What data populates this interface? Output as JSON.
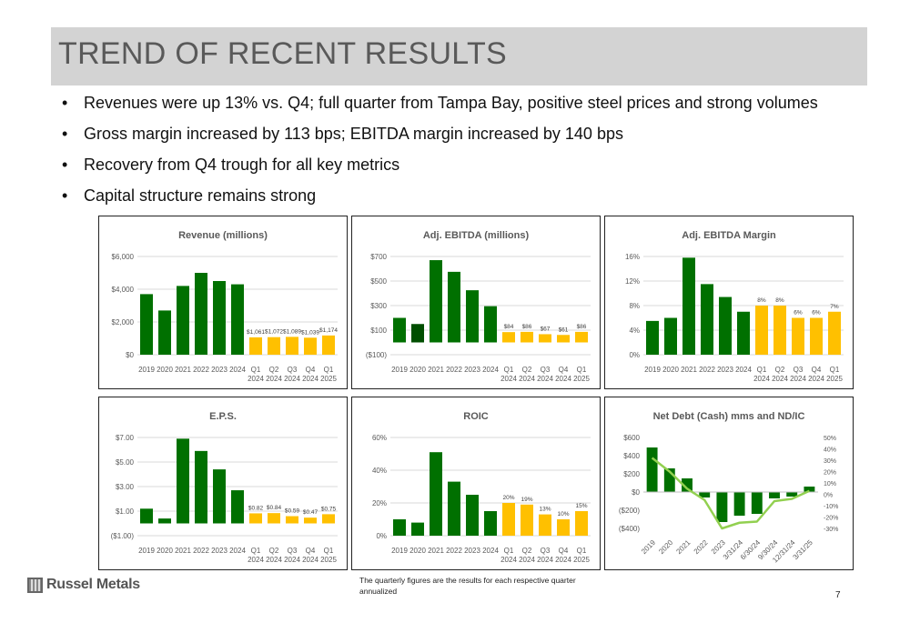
{
  "page_title": "TREND OF RECENT RESULTS",
  "bullets": [
    "Revenues were up 13% vs. Q4; full quarter from Tampa Bay, positive steel prices and strong volumes",
    "Gross margin increased by 113 bps; EBITDA margin increased by 140 bps",
    "Recovery from Q4 trough for all key metrics",
    "Capital structure remains strong"
  ],
  "bullet_char": "•",
  "footnote": {
    "line1": "The quarterly figures are the results for each respective quarter",
    "line2": "annualized"
  },
  "logo_text": "Russel Metals",
  "logo_icon": "russel-metals-logo-mark",
  "page_number": "7",
  "colors": {
    "annual": "#007000",
    "annual_dark": "#004e00",
    "quarterly": "#ffc000",
    "line": "#92d050",
    "title_bar": "#d3d3d3"
  },
  "chart_data": [
    {
      "id": "revenue",
      "type": "bar",
      "title": "Revenue (millions)",
      "categories": [
        [
          "2019"
        ],
        [
          "2020"
        ],
        [
          "2021"
        ],
        [
          "2022"
        ],
        [
          "2023"
        ],
        [
          "2024"
        ],
        [
          "Q1",
          "2024"
        ],
        [
          "Q2",
          "2024"
        ],
        [
          "Q3",
          "2024"
        ],
        [
          "Q4",
          "2024"
        ],
        [
          "Q1",
          "2025"
        ]
      ],
      "values": [
        3700,
        2700,
        4200,
        5000,
        4500,
        4300,
        1061,
        1072,
        1089,
        1039,
        1174
      ],
      "bar_colors": [
        "annual",
        "annual",
        "annual",
        "annual",
        "annual",
        "annual",
        "quarterly",
        "quarterly",
        "quarterly",
        "quarterly",
        "quarterly"
      ],
      "data_labels": [
        "",
        "",
        "",
        "",
        "",
        "",
        "$1,061",
        "$1,072",
        "$1,089",
        "$1,039",
        "$1,174"
      ],
      "yticks": [
        0,
        2000,
        4000,
        6000
      ],
      "ytick_labels": [
        "$0",
        "$2,000",
        "$4,000",
        "$6,000"
      ],
      "ylim": [
        0,
        6000
      ],
      "grid": true
    },
    {
      "id": "ebitda",
      "type": "bar",
      "title": "Adj. EBITDA (millions)",
      "categories": [
        [
          "2019"
        ],
        [
          "2020"
        ],
        [
          "2021"
        ],
        [
          "2022"
        ],
        [
          "2023"
        ],
        [
          "2024"
        ],
        [
          "Q1",
          "2024"
        ],
        [
          "Q2",
          "2024"
        ],
        [
          "Q3",
          "2024"
        ],
        [
          "Q4",
          "2024"
        ],
        [
          "Q1",
          "2025"
        ]
      ],
      "values": [
        200,
        150,
        670,
        575,
        425,
        295,
        84,
        86,
        67,
        61,
        86
      ],
      "bar_colors": [
        "annual",
        "annual_dark",
        "annual",
        "annual",
        "annual",
        "annual",
        "quarterly",
        "quarterly",
        "quarterly",
        "quarterly",
        "quarterly"
      ],
      "data_labels": [
        "",
        "",
        "",
        "",
        "",
        "",
        "$84",
        "$86",
        "$67",
        "$61",
        "$86"
      ],
      "yticks": [
        -100,
        100,
        300,
        500,
        700
      ],
      "ytick_labels": [
        "($100)",
        "$100",
        "$300",
        "$500",
        "$700"
      ],
      "ylim": [
        -100,
        700
      ],
      "grid": true
    },
    {
      "id": "margin",
      "type": "bar",
      "title": "Adj. EBITDA Margin",
      "categories": [
        [
          "2019"
        ],
        [
          "2020"
        ],
        [
          "2021"
        ],
        [
          "2022"
        ],
        [
          "2023"
        ],
        [
          "2024"
        ],
        [
          "Q1",
          "2024"
        ],
        [
          "Q2",
          "2024"
        ],
        [
          "Q3",
          "2024"
        ],
        [
          "Q4",
          "2024"
        ],
        [
          "Q1",
          "2025"
        ]
      ],
      "values": [
        5.5,
        6,
        15.8,
        11.5,
        9.4,
        7,
        8,
        8,
        6,
        6,
        7
      ],
      "bar_colors": [
        "annual",
        "annual",
        "annual",
        "annual",
        "annual",
        "annual",
        "quarterly",
        "quarterly",
        "quarterly",
        "quarterly",
        "quarterly"
      ],
      "data_labels": [
        "",
        "",
        "",
        "",
        "",
        "",
        "8%",
        "8%",
        "6%",
        "6%",
        "7%"
      ],
      "yticks": [
        0,
        4,
        8,
        12,
        16
      ],
      "ytick_labels": [
        "0%",
        "4%",
        "8%",
        "12%",
        "16%"
      ],
      "ylim": [
        0,
        16
      ],
      "grid": true
    },
    {
      "id": "eps",
      "type": "bar",
      "title": "E.P.S.",
      "categories": [
        [
          "2019"
        ],
        [
          "2020"
        ],
        [
          "2021"
        ],
        [
          "2022"
        ],
        [
          "2023"
        ],
        [
          "2024"
        ],
        [
          "Q1",
          "2024"
        ],
        [
          "Q2",
          "2024"
        ],
        [
          "Q3",
          "2024"
        ],
        [
          "Q4",
          "2024"
        ],
        [
          "Q1",
          "2025"
        ]
      ],
      "values": [
        1.2,
        0.4,
        6.9,
        5.9,
        4.4,
        2.7,
        0.82,
        0.84,
        0.59,
        0.47,
        0.75
      ],
      "bar_colors": [
        "annual",
        "annual",
        "annual",
        "annual",
        "annual",
        "annual",
        "quarterly",
        "quarterly",
        "quarterly",
        "quarterly",
        "quarterly"
      ],
      "data_labels": [
        "",
        "",
        "",
        "",
        "",
        "",
        "$0.82",
        "$0.84",
        "$0.59",
        "$0.47",
        "$0.75"
      ],
      "yticks": [
        -1,
        1,
        3,
        5,
        7
      ],
      "ytick_labels": [
        "($1.00)",
        "$1.00",
        "$3.00",
        "$5.00",
        "$7.00"
      ],
      "ylim": [
        -1,
        7
      ],
      "grid": true
    },
    {
      "id": "roic",
      "type": "bar",
      "title": "ROIC",
      "categories": [
        [
          "2019"
        ],
        [
          "2020"
        ],
        [
          "2021"
        ],
        [
          "2022"
        ],
        [
          "2023"
        ],
        [
          "2024"
        ],
        [
          "Q1",
          "2024"
        ],
        [
          "Q2",
          "2024"
        ],
        [
          "Q3",
          "2024"
        ],
        [
          "Q4",
          "2024"
        ],
        [
          "Q1",
          "2025"
        ]
      ],
      "values": [
        10,
        8,
        51,
        33,
        25,
        15,
        20,
        19,
        13,
        10,
        15
      ],
      "bar_colors": [
        "annual",
        "annual",
        "annual",
        "annual",
        "annual",
        "annual",
        "quarterly",
        "quarterly",
        "quarterly",
        "quarterly",
        "quarterly"
      ],
      "data_labels": [
        "",
        "",
        "",
        "",
        "",
        "",
        "20%",
        "19%",
        "13%",
        "10%",
        "15%"
      ],
      "yticks": [
        0,
        20,
        40,
        60
      ],
      "ytick_labels": [
        "0%",
        "20%",
        "40%",
        "60%"
      ],
      "ylim": [
        0,
        60
      ],
      "grid": true
    },
    {
      "id": "netdebt",
      "type": "bar",
      "title": "Net Debt (Cash) mms and ND/IC",
      "categories": [
        "2019",
        "2020",
        "2021",
        "2022",
        "2023",
        "3/31/24",
        "6/30/24",
        "9/30/24",
        "12/31/24",
        "3/31/25"
      ],
      "values": [
        490,
        260,
        150,
        -60,
        -330,
        -260,
        -240,
        -70,
        -50,
        60
      ],
      "bar_color": "annual",
      "ratio_series": [
        32,
        20,
        5,
        -5,
        -30,
        -25,
        -24,
        -6,
        -4,
        3
      ],
      "ratio_color": "line",
      "yticks": [
        -400,
        -200,
        0,
        200,
        400,
        600
      ],
      "ytick_labels": [
        "($400)",
        "($200)",
        "$0",
        "$200",
        "$400",
        "$600"
      ],
      "ylim": [
        -400,
        600
      ],
      "y2ticks": [
        -30,
        -20,
        -10,
        0,
        10,
        20,
        30,
        40,
        50
      ],
      "y2tick_labels": [
        "-30%",
        "-20%",
        "-10%",
        "0%",
        "10%",
        "20%",
        "30%",
        "40%",
        "50%"
      ],
      "y2lim": [
        -30,
        50
      ],
      "grid": false
    }
  ]
}
